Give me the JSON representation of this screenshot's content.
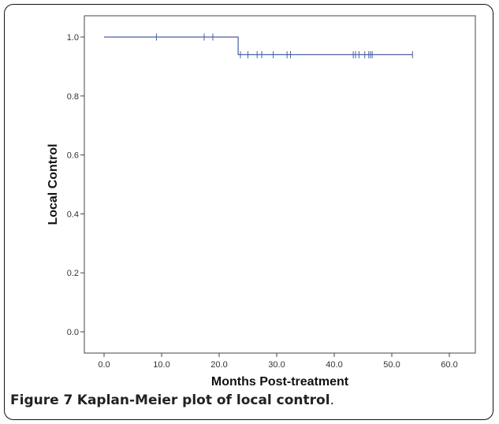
{
  "caption": {
    "label": "Figure 7",
    "text": "Kaplan-Meier plot of local control",
    "period": "."
  },
  "chart_data": {
    "type": "line",
    "title": "",
    "xlabel": "Months Post-treatment",
    "ylabel": "Local Control",
    "xlim": [
      0,
      60
    ],
    "ylim": [
      0,
      1
    ],
    "x_ticks": [
      "0.0",
      "10.0",
      "20.0",
      "30.0",
      "40.0",
      "50.0",
      "60.0"
    ],
    "y_ticks": [
      "0.0",
      "0.2",
      "0.4",
      "0.6",
      "0.8",
      "1.0"
    ],
    "grid": false,
    "series": [
      {
        "color": "#4a5fa8",
        "step_x": [
          0,
          23.3,
          23.3,
          53.6
        ],
        "step_y": [
          1.0,
          1.0,
          0.94,
          0.94
        ],
        "censored": [
          {
            "x": 9.1,
            "y": 1.0
          },
          {
            "x": 17.4,
            "y": 1.0
          },
          {
            "x": 18.9,
            "y": 1.0
          },
          {
            "x": 23.7,
            "y": 0.94
          },
          {
            "x": 25.0,
            "y": 0.94
          },
          {
            "x": 26.6,
            "y": 0.94
          },
          {
            "x": 27.4,
            "y": 0.94
          },
          {
            "x": 29.4,
            "y": 0.94
          },
          {
            "x": 31.8,
            "y": 0.94
          },
          {
            "x": 32.4,
            "y": 0.94
          },
          {
            "x": 43.3,
            "y": 0.94
          },
          {
            "x": 43.7,
            "y": 0.94
          },
          {
            "x": 44.3,
            "y": 0.94
          },
          {
            "x": 45.3,
            "y": 0.94
          },
          {
            "x": 46.0,
            "y": 0.94
          },
          {
            "x": 46.3,
            "y": 0.94
          },
          {
            "x": 46.6,
            "y": 0.94
          },
          {
            "x": 53.6,
            "y": 0.94
          }
        ]
      }
    ]
  }
}
